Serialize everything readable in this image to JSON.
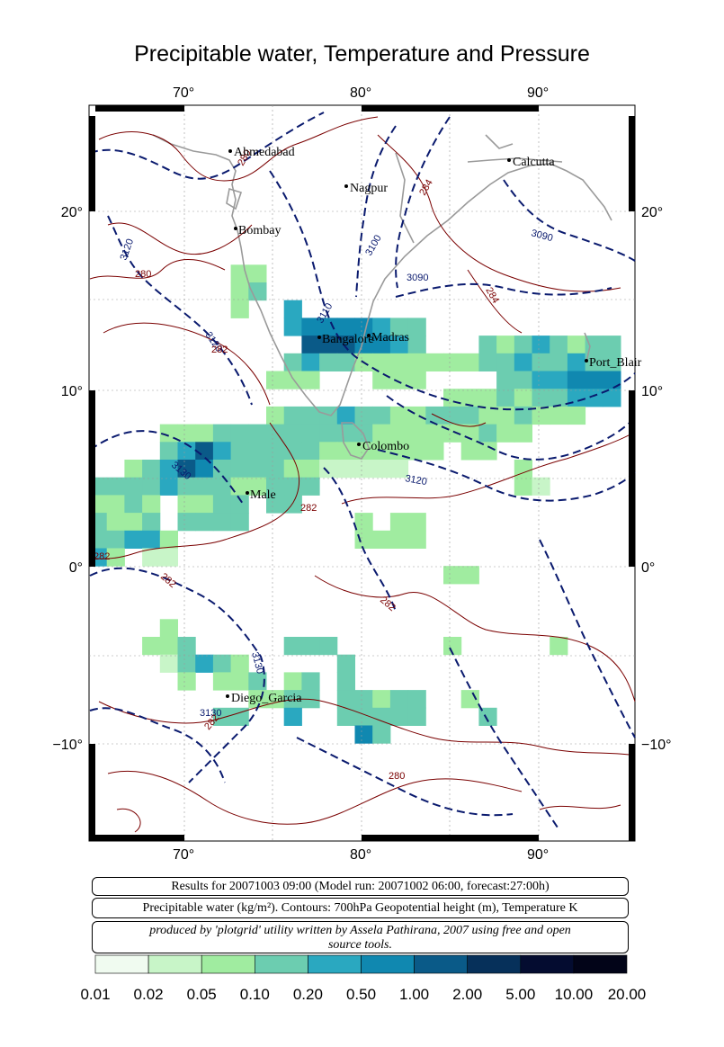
{
  "title": "Precipitable water, Temperature and Pressure",
  "map": {
    "lon_ticks": [
      "70°",
      "80°",
      "90°"
    ],
    "lat_ticks": [
      "20°",
      "10°",
      "0°",
      "−10°"
    ],
    "cities": [
      {
        "name": "Ahmedabad"
      },
      {
        "name": "Calcutta"
      },
      {
        "name": "Nagpur"
      },
      {
        "name": "Bombay"
      },
      {
        "name": "Bangalore"
      },
      {
        "name": "Madras"
      },
      {
        "name": "Port_Blair"
      },
      {
        "name": "Colombo"
      },
      {
        "name": "Male"
      },
      {
        "name": "Diego_Garcia"
      }
    ],
    "contour_labels": [
      "3120",
      "3100",
      "3090",
      "3090",
      "3110",
      "3120",
      "3130",
      "3120",
      "3130",
      "3130",
      "280",
      "282",
      "284",
      "284",
      "282",
      "282",
      "282",
      "282",
      "282",
      "280",
      "280"
    ],
    "colors": {
      "height_contour": "#0a1a6e",
      "temp_contour": "#7a0000",
      "coast": "#9a9a9a"
    }
  },
  "info": {
    "line1": "Results for 20071003 09:00 (Model run: 20071002 06:00, forecast:27:00h)",
    "line2": "Precipitable water (kg/m²).  Contours: 700hPa Geopotential height (m), Temperature K",
    "line3a": "produced by 'plotgrid' utility written by Assela Pathirana, 2007 using free and open",
    "line3b": "source tools."
  },
  "colorbar": {
    "labels": [
      "0.01",
      "0.02",
      "0.05",
      "0.10",
      "0.20",
      "0.50",
      "1.00",
      "2.00",
      "5.00",
      "10.00",
      "20.00"
    ],
    "colors": [
      "#f0fbf0",
      "#c8f5c8",
      "#a0eca0",
      "#6ccdb0",
      "#2aa8c0",
      "#1088b0",
      "#0a5a88",
      "#06305a",
      "#040c30",
      "#020418"
    ]
  }
}
